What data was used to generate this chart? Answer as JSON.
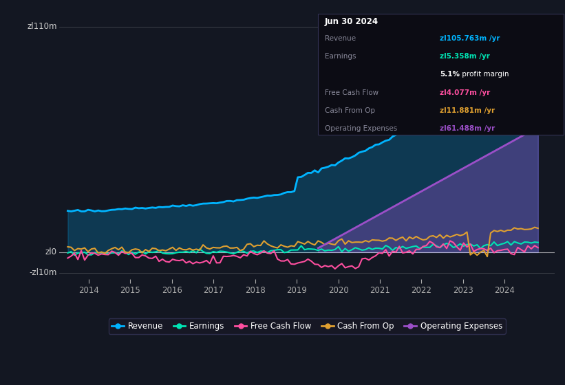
{
  "bg_color": "#131722",
  "plot_bg_color": "#131722",
  "title": "Jun 30 2024",
  "y_label_top": "zl110m",
  "y_label_zero": "zl0",
  "y_label_neg": "-zl10m",
  "x_ticks": [
    "2014",
    "2015",
    "2016",
    "2017",
    "2018",
    "2019",
    "2020",
    "2021",
    "2022",
    "2023",
    "2024"
  ],
  "ylim": [
    -13,
    118
  ],
  "xlim": [
    2013.3,
    2025.2
  ],
  "colors": {
    "revenue": "#00b4ff",
    "earnings": "#00e5b4",
    "free_cash_flow": "#ff4fa0",
    "cash_from_op": "#e0a030",
    "operating_expenses": "#9b4fc8"
  },
  "info_box_title": "Jun 30 2024",
  "info_rows": [
    {
      "label": "Revenue",
      "value": "zl105.763m /yr",
      "color": "#00b4ff"
    },
    {
      "label": "Earnings",
      "value": "zl5.358m /yr",
      "color": "#00e5b4"
    },
    {
      "label": "",
      "value": "5.1% profit margin",
      "color": "#ffffff"
    },
    {
      "label": "Free Cash Flow",
      "value": "zl4.077m /yr",
      "color": "#ff4fa0"
    },
    {
      "label": "Cash From Op",
      "value": "zl11.881m /yr",
      "color": "#e0a030"
    },
    {
      "label": "Operating Expenses",
      "value": "zl61.488m /yr",
      "color": "#9b4fc8"
    }
  ],
  "legend": [
    {
      "label": "Revenue",
      "color": "#00b4ff"
    },
    {
      "label": "Earnings",
      "color": "#00e5b4"
    },
    {
      "label": "Free Cash Flow",
      "color": "#ff4fa0"
    },
    {
      "label": "Cash From Op",
      "color": "#e0a030"
    },
    {
      "label": "Operating Expenses",
      "color": "#9b4fc8"
    }
  ]
}
